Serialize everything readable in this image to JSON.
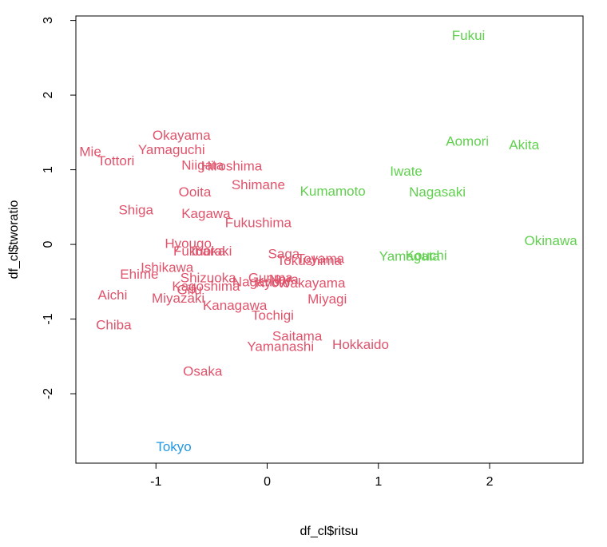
{
  "chart_data": {
    "type": "scatter",
    "xlabel": "df_cl$ritsu",
    "ylabel": "df_cl$tworatio",
    "xlim": [
      -1.72,
      2.84
    ],
    "ylim": [
      -2.93,
      3.06
    ],
    "x_ticks": [
      -1,
      0,
      1,
      2
    ],
    "y_ticks": [
      -2,
      -1,
      0,
      1,
      2,
      3
    ],
    "colors": {
      "cluster1": "#DF536B",
      "cluster2": "#61D04F",
      "cluster3": "#2297E6"
    },
    "points": [
      {
        "label": "Fukui",
        "x": 1.81,
        "y": 2.8,
        "cluster": 2
      },
      {
        "label": "Aomori",
        "x": 1.8,
        "y": 1.38,
        "cluster": 2
      },
      {
        "label": "Akita",
        "x": 2.31,
        "y": 1.33,
        "cluster": 2
      },
      {
        "label": "Iwate",
        "x": 1.25,
        "y": 0.98,
        "cluster": 2
      },
      {
        "label": "Kumamoto",
        "x": 0.59,
        "y": 0.71,
        "cluster": 2
      },
      {
        "label": "Nagasaki",
        "x": 1.53,
        "y": 0.7,
        "cluster": 2
      },
      {
        "label": "Okinawa",
        "x": 2.55,
        "y": 0.05,
        "cluster": 2
      },
      {
        "label": "Yamagata",
        "x": 1.28,
        "y": -0.16,
        "cluster": 2
      },
      {
        "label": "Kouchi",
        "x": 1.43,
        "y": -0.15,
        "cluster": 2
      },
      {
        "label": "Okayama",
        "x": -0.77,
        "y": 1.46,
        "cluster": 1
      },
      {
        "label": "Yamaguchi",
        "x": -0.86,
        "y": 1.27,
        "cluster": 1
      },
      {
        "label": "Mie",
        "x": -1.59,
        "y": 1.24,
        "cluster": 1
      },
      {
        "label": "Tottori",
        "x": -1.36,
        "y": 1.12,
        "cluster": 1
      },
      {
        "label": "Niigata",
        "x": -0.58,
        "y": 1.06,
        "cluster": 1
      },
      {
        "label": "Hiroshima",
        "x": -0.32,
        "y": 1.05,
        "cluster": 1
      },
      {
        "label": "Shimane",
        "x": -0.08,
        "y": 0.8,
        "cluster": 1
      },
      {
        "label": "Ooita",
        "x": -0.65,
        "y": 0.7,
        "cluster": 1
      },
      {
        "label": "Shiga",
        "x": -1.18,
        "y": 0.46,
        "cluster": 1
      },
      {
        "label": "Kagawa",
        "x": -0.55,
        "y": 0.41,
        "cluster": 1
      },
      {
        "label": "Fukushima",
        "x": -0.08,
        "y": 0.29,
        "cluster": 1
      },
      {
        "label": "Hyougo",
        "x": -0.71,
        "y": 0.01,
        "cluster": 1
      },
      {
        "label": "Fukuoka",
        "x": -0.61,
        "y": -0.09,
        "cluster": 1
      },
      {
        "label": "Ibaraki",
        "x": -0.5,
        "y": -0.09,
        "cluster": 1
      },
      {
        "label": "Saga",
        "x": 0.15,
        "y": -0.13,
        "cluster": 1
      },
      {
        "label": "Toyama",
        "x": 0.48,
        "y": -0.19,
        "cluster": 1
      },
      {
        "label": "Tokushima",
        "x": 0.38,
        "y": -0.22,
        "cluster": 1
      },
      {
        "label": "Ishikawa",
        "x": -0.9,
        "y": -0.31,
        "cluster": 1
      },
      {
        "label": "Ehime",
        "x": -1.15,
        "y": -0.4,
        "cluster": 1
      },
      {
        "label": "Shizuoka",
        "x": -0.53,
        "y": -0.45,
        "cluster": 1
      },
      {
        "label": "Gunma",
        "x": 0.03,
        "y": -0.45,
        "cluster": 1
      },
      {
        "label": "Nara",
        "x": 0.15,
        "y": -0.47,
        "cluster": 1
      },
      {
        "label": "Nagano",
        "x": -0.1,
        "y": -0.5,
        "cluster": 1
      },
      {
        "label": "Kyoto",
        "x": 0.05,
        "y": -0.51,
        "cluster": 1
      },
      {
        "label": "Wakayama",
        "x": 0.4,
        "y": -0.52,
        "cluster": 1
      },
      {
        "label": "Kagoshima",
        "x": -0.55,
        "y": -0.56,
        "cluster": 1
      },
      {
        "label": "Gifu",
        "x": -0.7,
        "y": -0.61,
        "cluster": 1
      },
      {
        "label": "Aichi",
        "x": -1.39,
        "y": -0.68,
        "cluster": 1
      },
      {
        "label": "Miyazaki",
        "x": -0.8,
        "y": -0.72,
        "cluster": 1
      },
      {
        "label": "Miyagi",
        "x": 0.54,
        "y": -0.73,
        "cluster": 1
      },
      {
        "label": "Kanagawa",
        "x": -0.29,
        "y": -0.82,
        "cluster": 1
      },
      {
        "label": "Tochigi",
        "x": 0.05,
        "y": -0.95,
        "cluster": 1
      },
      {
        "label": "Chiba",
        "x": -1.38,
        "y": -1.08,
        "cluster": 1
      },
      {
        "label": "Saitama",
        "x": 0.27,
        "y": -1.23,
        "cluster": 1
      },
      {
        "label": "Hokkaido",
        "x": 0.84,
        "y": -1.34,
        "cluster": 1
      },
      {
        "label": "Yamanashi",
        "x": 0.12,
        "y": -1.37,
        "cluster": 1
      },
      {
        "label": "Osaka",
        "x": -0.58,
        "y": -1.7,
        "cluster": 1
      },
      {
        "label": "Tokyo",
        "x": -0.84,
        "y": -2.71,
        "cluster": 3
      }
    ]
  }
}
